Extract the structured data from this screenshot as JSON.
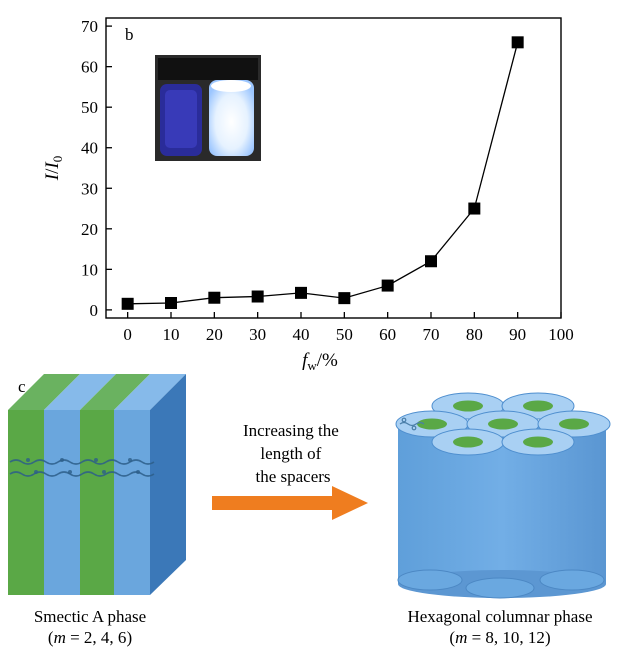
{
  "chart_data": {
    "type": "line",
    "panel_label": "b",
    "xlabel": "f",
    "xlabel_sub": "w",
    "xlabel_suffix": "/%",
    "ylabel": "I",
    "ylabel_sep": "/",
    "ylabel_main2": "I",
    "ylabel_sub": "0",
    "xlim": [
      -5,
      100
    ],
    "ylim": [
      -2,
      72
    ],
    "xticks": [
      0,
      10,
      20,
      30,
      40,
      50,
      60,
      70,
      80,
      90,
      100
    ],
    "yticks": [
      0,
      10,
      20,
      30,
      40,
      50,
      60,
      70
    ],
    "grid": false,
    "marker": "square",
    "series": [
      {
        "x": [
          0,
          10,
          20,
          30,
          40,
          50,
          60,
          70,
          80,
          90
        ],
        "values": [
          1.5,
          1.7,
          3.0,
          3.3,
          4.2,
          2.9,
          6.0,
          12.0,
          25.0,
          66.0
        ]
      }
    ],
    "inset": "photo of two vials, left dark blue, right bright white-blue emission"
  },
  "scheme": {
    "panel_label": "c",
    "arrow_text": [
      "Increasing the",
      "length of",
      "the spacers"
    ],
    "left_title": "Smectic A phase",
    "left_params": {
      "var": "m",
      "rest": " = 2, 4, 6"
    },
    "right_title": "Hexagonal columnar phase",
    "right_params": {
      "var": "m",
      "rest": " = 8, 10, 12"
    },
    "colors": {
      "green": "#5aa846",
      "blue": "#6aa6dd",
      "dark_blue": "#3b78b8",
      "arrow": "#ef7d1f"
    }
  }
}
